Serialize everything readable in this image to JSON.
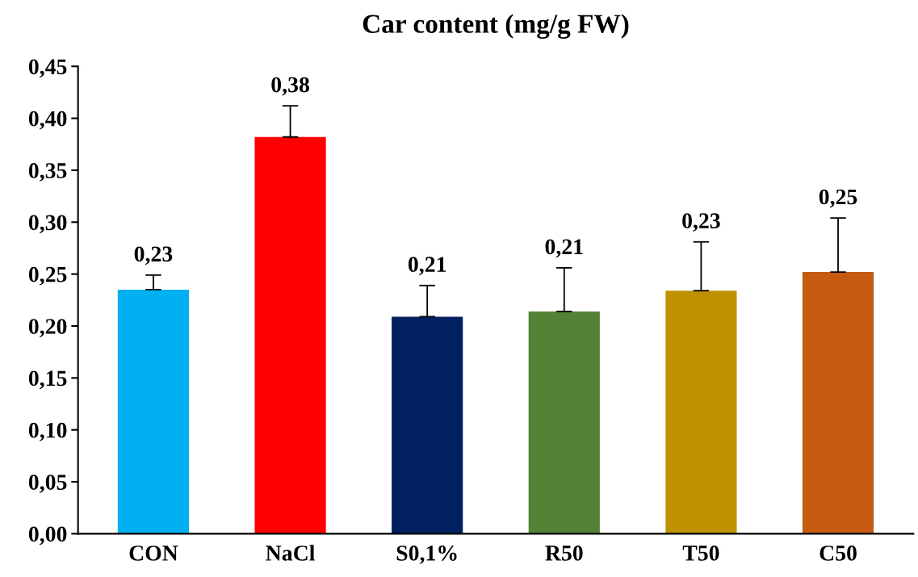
{
  "chart_data": {
    "type": "bar",
    "title": "Car content (mg/g FW)",
    "categories": [
      "CON",
      "NaCl",
      "S0,1%",
      "R50",
      "T50",
      "C50"
    ],
    "values": [
      0.235,
      0.382,
      0.209,
      0.214,
      0.234,
      0.252
    ],
    "colors": [
      "#00b0f0",
      "#ff0000",
      "#002060",
      "#538135",
      "#bf9000",
      "#c55a11"
    ],
    "errors": [
      [
        0.235,
        0.249
      ],
      [
        0.382,
        0.412
      ],
      [
        0.209,
        0.239
      ],
      [
        0.214,
        0.256
      ],
      [
        0.234,
        0.281
      ],
      [
        0.252,
        0.304
      ]
    ],
    "value_labels": [
      "0,23",
      "0,38",
      "0,21",
      "0,21",
      "0,23",
      "0,25"
    ],
    "ylim": [
      0,
      0.45
    ],
    "yticks": [
      {
        "value": 0,
        "label": "0,00"
      },
      {
        "value": 0.05,
        "label": "0,05"
      },
      {
        "value": 0.1,
        "label": "0,10"
      },
      {
        "value": 0.15,
        "label": "0,15"
      },
      {
        "value": 0.2,
        "label": "0,20"
      },
      {
        "value": 0.25,
        "label": "0,25"
      },
      {
        "value": 0.3,
        "label": "0,30"
      },
      {
        "value": 0.35,
        "label": "0,35"
      },
      {
        "value": 0.4,
        "label": "0,40"
      },
      {
        "value": 0.45,
        "label": "0,45"
      }
    ],
    "grid": false,
    "legend": false
  }
}
